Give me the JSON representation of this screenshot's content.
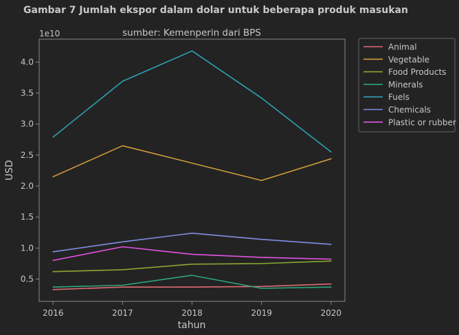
{
  "chart_data": {
    "type": "line",
    "title": "Gambar 7 Jumlah ekspor dalam dolar untuk beberapa produk masukan",
    "subtitle": "sumber: Kemenperin dari BPS",
    "xlabel": "tahun",
    "ylabel": "USD",
    "y_scale_label": "1e10",
    "x": [
      2016,
      2017,
      2018,
      2019,
      2020
    ],
    "x_tick_labels": [
      "2016",
      "2017",
      "2018",
      "2019",
      "2020"
    ],
    "y_ticks": [
      0.5,
      1.0,
      1.5,
      2.0,
      2.5,
      3.0,
      3.5,
      4.0
    ],
    "y_tick_labels": [
      "0.5",
      "1.0",
      "1.5",
      "2.0",
      "2.5",
      "3.0",
      "3.5",
      "4.0"
    ],
    "xlim": [
      2015.8,
      2020.2
    ],
    "ylim": [
      0.14,
      4.37
    ],
    "grid": false,
    "legend_position": "outside-top-right",
    "series": [
      {
        "name": "Animal",
        "color": "#e06c75",
        "values": [
          0.33,
          0.37,
          0.37,
          0.38,
          0.42
        ]
      },
      {
        "name": "Vegetable",
        "color": "#d19a3a",
        "values": [
          2.15,
          2.65,
          2.37,
          2.09,
          2.44
        ]
      },
      {
        "name": "Food Products",
        "color": "#8da832",
        "values": [
          0.62,
          0.65,
          0.74,
          0.75,
          0.79
        ]
      },
      {
        "name": "Minerals",
        "color": "#2fa87c",
        "values": [
          0.37,
          0.4,
          0.56,
          0.35,
          0.37
        ]
      },
      {
        "name": "Fuels",
        "color": "#2fa0b5",
        "values": [
          2.79,
          3.69,
          4.18,
          3.42,
          2.55
        ]
      },
      {
        "name": "Chemicals",
        "color": "#7f8fe6",
        "values": [
          0.94,
          1.1,
          1.24,
          1.14,
          1.06
        ]
      },
      {
        "name": "Plastic or rubber",
        "color": "#e454e4",
        "values": [
          0.8,
          1.02,
          0.9,
          0.85,
          0.82
        ]
      }
    ],
    "colors": {
      "background": "#232323",
      "axes_frame": "#8a8a8a",
      "text": "#c8c8c8"
    }
  }
}
